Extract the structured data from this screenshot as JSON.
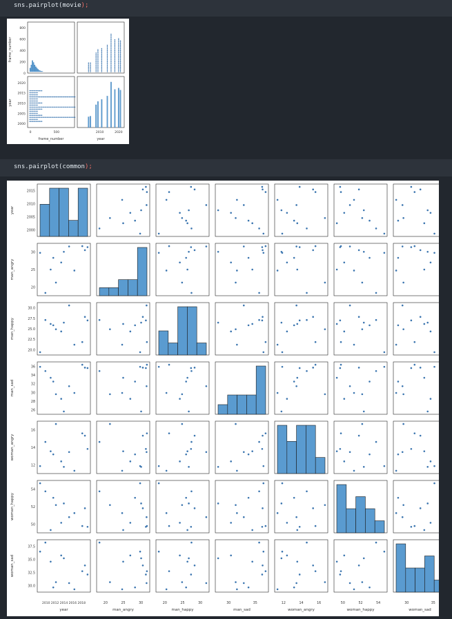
{
  "cells": [
    {
      "code": "sns.pairplot(movie);",
      "code_fn": "sns.pairplot(movie",
      "code_end": ");"
    },
    {
      "code": "sns.pairplot(common);",
      "code_fn": "sns.pairplot(common",
      "code_end": ");"
    }
  ],
  "colors": {
    "accent": "#3b75af",
    "bar": "#5a9bd0",
    "bg": "#22272e",
    "cell": "#2d333b",
    "paren": "#f47067"
  },
  "movie_plot": {
    "variables": [
      "frame_number",
      "year"
    ],
    "frame_number_ticks": [
      "0",
      "200",
      "400",
      "600",
      "800"
    ],
    "year_ticks": [
      "2000",
      "2005",
      "2010",
      "2015",
      "2020"
    ],
    "x_ticks_frame": [
      "0",
      "500"
    ],
    "x_ticks_year": [
      "2010",
      "2020"
    ],
    "diag_frame_hist": [
      0.3,
      0.55,
      0.9,
      0.75,
      0.55,
      0.4,
      0.3,
      0.2,
      0.12,
      0.08,
      0.05,
      0.03
    ],
    "diag_year_bars": [
      {
        "x": 2004,
        "h": 160
      },
      {
        "x": 2005,
        "h": 170
      },
      {
        "x": 2008,
        "h": 340
      },
      {
        "x": 2009,
        "h": 390
      },
      {
        "x": 2011,
        "h": 420
      },
      {
        "x": 2014,
        "h": 470
      },
      {
        "x": 2016,
        "h": 680
      },
      {
        "x": 2018,
        "h": 570
      },
      {
        "x": 2020,
        "h": 590
      },
      {
        "x": 2021,
        "h": 560
      }
    ],
    "years": [
      2001,
      2002,
      2003,
      2004,
      2005,
      2006,
      2007,
      2008,
      2009,
      2010,
      2011,
      2012,
      2013,
      2014,
      2015,
      2016
    ]
  },
  "common_plot": {
    "variables": [
      "year",
      "man_angry",
      "man_happy",
      "man_sad",
      "woman_angry",
      "woman_happy",
      "woman_sad"
    ],
    "tick_labels": {
      "year": [
        "2000",
        "2005",
        "2010",
        "2015"
      ],
      "man_angry": [
        "20",
        "25",
        "30"
      ],
      "man_happy": [
        "20",
        "25",
        "30"
      ],
      "man_sad": [
        "30",
        "35"
      ],
      "woman_angry": [
        "12",
        "14",
        "16"
      ],
      "woman_happy": [
        "50",
        "52",
        "54"
      ],
      "woman_sad": [
        "30",
        "35"
      ]
    },
    "y_tick_labels": {
      "year": [
        "2000",
        "2005",
        "2010",
        "2015"
      ],
      "man_angry": [
        "20",
        "25",
        "30"
      ],
      "man_happy": [
        "20.0",
        "22.5",
        "25.0",
        "27.5",
        "30.0"
      ],
      "man_sad": [
        "26",
        "28",
        "30",
        "32",
        "34",
        "36"
      ],
      "woman_angry": [
        "12",
        "14",
        "16"
      ],
      "woman_happy": [
        "50",
        "52",
        "54"
      ],
      "woman_sad": [
        "30.0",
        "32.5",
        "35.0",
        "37.5"
      ]
    },
    "x_tick_year_combined": "2010 2012 2014 2016 2018",
    "observations": [
      {
        "year": 2000,
        "man_angry": 31,
        "man_happy": 20.2,
        "man_sad": 36.2,
        "woman_angry": 12,
        "woman_happy": 55.6,
        "woman_sad": 37.2
      },
      {
        "year": 2002,
        "man_angry": 19,
        "man_happy": 27.5,
        "man_sad": 35.2,
        "woman_angry": 15.1,
        "woman_happy": 54.6,
        "woman_sad": 39.1
      },
      {
        "year": 2004,
        "man_angry": 26,
        "man_happy": 26.6,
        "man_sad": 33.6,
        "woman_angry": 13.9,
        "woman_happy": 49.8,
        "woman_sad": 35.1
      },
      {
        "year": 2005,
        "man_angry": 29.5,
        "man_happy": 26.3,
        "man_sad": 32.7,
        "woman_angry": 13.5,
        "woman_happy": 53.8,
        "woman_sad": 29.7
      },
      {
        "year": 2006,
        "man_angry": 22.1,
        "man_happy": 25.4,
        "man_sad": 29.7,
        "woman_angry": 17.4,
        "woman_happy": 52.9,
        "woman_sad": 30.8
      },
      {
        "year": 2008,
        "man_angry": 28.1,
        "man_happy": 24.9,
        "man_sad": 28.6,
        "woman_angry": 12.6,
        "woman_happy": 50.7,
        "woman_sad": 36.4
      },
      {
        "year": 2009,
        "man_angry": 31.3,
        "man_happy": 26.9,
        "man_sad": 25.6,
        "woman_angry": 11.9,
        "woman_happy": 53.1,
        "woman_sad": 35.8
      },
      {
        "year": 2011,
        "man_angry": 32.9,
        "man_happy": 30.8,
        "man_sad": 31.6,
        "woman_angry": 13.8,
        "woman_happy": 51.4,
        "woman_sad": 30.6
      },
      {
        "year": 2013,
        "man_angry": 25.7,
        "man_happy": 21.9,
        "man_sad": 30.0,
        "woman_angry": 11.4,
        "woman_happy": 51.9,
        "woman_sad": 29.3
      },
      {
        "year": 2016,
        "man_angry": 33.0,
        "man_happy": 22.5,
        "man_sad": 36.7,
        "woman_angry": 16.2,
        "woman_happy": 50.3,
        "woman_sad": 33.1
      },
      {
        "year": 2017,
        "man_angry": 31.8,
        "man_happy": 28.2,
        "man_sad": 36.0,
        "woman_angry": 15.9,
        "woman_happy": 52.5,
        "woman_sad": 34.3
      },
      {
        "year": 2018,
        "man_angry": 32.7,
        "man_happy": 27.4,
        "man_sad": 35.9,
        "woman_angry": 14.2,
        "woman_happy": 50.2,
        "woman_sad": 32.4
      }
    ]
  }
}
